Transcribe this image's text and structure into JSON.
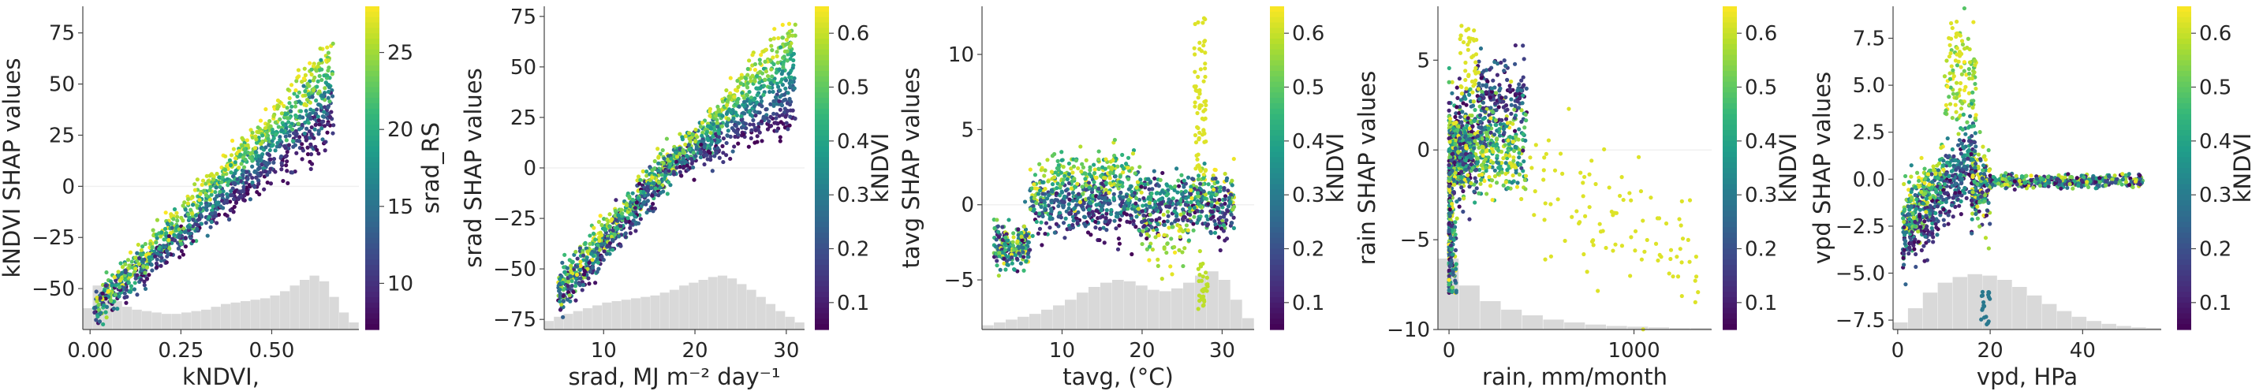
{
  "chart_data": [
    {
      "type": "scatter",
      "xlabel": "kNDVI,",
      "ylabel": "kNDVI SHAP values",
      "xlim": [
        -0.02,
        0.74
      ],
      "ylim": [
        -70,
        88
      ],
      "xticks": [
        0.0,
        0.25,
        0.5
      ],
      "xtick_labels": [
        "0.00",
        "0.25",
        "0.50"
      ],
      "yticks": [
        -50,
        -25,
        0,
        25,
        50,
        75
      ],
      "ytick_labels": [
        "−50",
        "−25",
        "0",
        "25",
        "50",
        "75"
      ],
      "colorbar": {
        "label": "srad_RS",
        "range": [
          7,
          28
        ],
        "ticks": [
          10,
          15,
          20,
          25
        ],
        "tick_labels": [
          "10",
          "15",
          "20",
          "25"
        ]
      },
      "zero_line": true,
      "histogram_heights": [
        0.3,
        0.62,
        0.55,
        0.4,
        0.32,
        0.28,
        0.26,
        0.24,
        0.22,
        0.22,
        0.24,
        0.26,
        0.28,
        0.32,
        0.36,
        0.38,
        0.4,
        0.42,
        0.44,
        0.48,
        0.54,
        0.62,
        0.7,
        0.76,
        0.68,
        0.46,
        0.24,
        0.1
      ],
      "points": [
        [
          0.03,
          -60
        ],
        [
          0.06,
          -52
        ],
        [
          0.1,
          -38
        ],
        [
          0.15,
          -22
        ],
        [
          0.2,
          -12
        ],
        [
          0.25,
          -2
        ],
        [
          0.3,
          8
        ],
        [
          0.35,
          18
        ],
        [
          0.4,
          26
        ],
        [
          0.45,
          36
        ],
        [
          0.5,
          44
        ],
        [
          0.55,
          52
        ],
        [
          0.6,
          60
        ],
        [
          0.63,
          70
        ],
        [
          0.65,
          80
        ]
      ]
    },
    {
      "type": "scatter",
      "xlabel": "srad, MJ m⁻² day⁻¹",
      "ylabel": "srad SHAP values",
      "xlim": [
        3.5,
        32
      ],
      "ylim": [
        -80,
        80
      ],
      "xticks": [
        10,
        20,
        30
      ],
      "xtick_labels": [
        "10",
        "20",
        "30"
      ],
      "yticks": [
        -75,
        -50,
        -25,
        0,
        25,
        50,
        75
      ],
      "ytick_labels": [
        "−75",
        "−50",
        "−25",
        "0",
        "25",
        "50",
        "75"
      ],
      "colorbar": {
        "label": "kNDVI",
        "range": [
          0.05,
          0.65
        ],
        "ticks": [
          0.1,
          0.2,
          0.3,
          0.4,
          0.5,
          0.6
        ],
        "tick_labels": [
          "0.1",
          "0.2",
          "0.3",
          "0.4",
          "0.5",
          "0.6"
        ]
      },
      "zero_line": true,
      "histogram_heights": [
        0.12,
        0.18,
        0.22,
        0.26,
        0.3,
        0.34,
        0.38,
        0.4,
        0.42,
        0.44,
        0.46,
        0.48,
        0.52,
        0.56,
        0.62,
        0.66,
        0.7,
        0.74,
        0.76,
        0.72,
        0.64,
        0.56,
        0.46,
        0.36,
        0.26,
        0.18,
        0.1
      ],
      "points": [
        [
          5,
          -70
        ],
        [
          8,
          -55
        ],
        [
          11,
          -35
        ],
        [
          14,
          -15
        ],
        [
          17,
          0
        ],
        [
          20,
          12
        ],
        [
          23,
          22
        ],
        [
          26,
          28
        ],
        [
          29,
          20
        ],
        [
          25,
          60
        ],
        [
          27,
          72
        ]
      ]
    },
    {
      "type": "scatter",
      "xlabel": "tavg, (°C)",
      "ylabel": "tavg SHAP values",
      "xlim": [
        0,
        34
      ],
      "ylim": [
        -8.3,
        13.2
      ],
      "xticks": [
        10,
        20,
        30
      ],
      "xtick_labels": [
        "10",
        "20",
        "30"
      ],
      "yticks": [
        -5,
        0,
        5,
        10
      ],
      "ytick_labels": [
        "−5",
        "0",
        "5",
        "10"
      ],
      "colorbar": {
        "label": "kNDVI",
        "range": [
          0.05,
          0.65
        ],
        "ticks": [
          0.1,
          0.2,
          0.3,
          0.4,
          0.5,
          0.6
        ],
        "tick_labels": [
          "0.1",
          "0.2",
          "0.3",
          "0.4",
          "0.5",
          "0.6"
        ]
      },
      "zero_line": true,
      "histogram_heights": [
        0.06,
        0.1,
        0.14,
        0.18,
        0.22,
        0.28,
        0.34,
        0.42,
        0.52,
        0.6,
        0.66,
        0.7,
        0.68,
        0.62,
        0.56,
        0.54,
        0.58,
        0.66,
        0.76,
        0.82,
        0.7,
        0.42,
        0.16
      ],
      "points": [
        [
          2,
          -2.5
        ],
        [
          5,
          -3
        ],
        [
          8,
          -1
        ],
        [
          12,
          2
        ],
        [
          15,
          1.5
        ],
        [
          18,
          1
        ],
        [
          22,
          -2
        ],
        [
          25,
          0.5
        ],
        [
          27,
          10
        ],
        [
          28,
          -6
        ],
        [
          30,
          0
        ]
      ]
    },
    {
      "type": "scatter",
      "xlabel": "rain, mm/month",
      "ylabel": "rain SHAP values",
      "xlim": [
        -60,
        1420
      ],
      "ylim": [
        -10,
        8
      ],
      "xticks": [
        0,
        1000
      ],
      "xtick_labels": [
        "0",
        "1000"
      ],
      "yticks": [
        -10,
        -5,
        0,
        5
      ],
      "ytick_labels": [
        "−10",
        "−5",
        "0",
        "5"
      ],
      "colorbar": {
        "label": "kNDVI",
        "range": [
          0.05,
          0.65
        ],
        "ticks": [
          0.1,
          0.2,
          0.3,
          0.4,
          0.5,
          0.6
        ],
        "tick_labels": [
          "0.1",
          "0.2",
          "0.3",
          "0.4",
          "0.5",
          "0.6"
        ]
      },
      "zero_line": true,
      "histogram_heights": [
        1.0,
        0.62,
        0.4,
        0.28,
        0.2,
        0.14,
        0.1,
        0.07,
        0.05,
        0.04,
        0.03,
        0.02,
        0.02
      ],
      "points": [
        [
          10,
          -2
        ],
        [
          50,
          1
        ],
        [
          100,
          3
        ],
        [
          200,
          4.5
        ],
        [
          300,
          3
        ],
        [
          400,
          0.5
        ],
        [
          600,
          -3
        ],
        [
          900,
          -6
        ],
        [
          1300,
          -6
        ]
      ]
    },
    {
      "type": "scatter",
      "xlabel": "vpd, HPa",
      "ylabel": "vpd SHAP values",
      "xlim": [
        -1,
        57
      ],
      "ylim": [
        -8,
        9.2
      ],
      "xticks": [
        0,
        20,
        40
      ],
      "xtick_labels": [
        "0",
        "20",
        "40"
      ],
      "yticks": [
        -7.5,
        -5.0,
        -2.5,
        0.0,
        2.5,
        5.0,
        7.5
      ],
      "ytick_labels": [
        "−7.5",
        "−5.0",
        "−2.5",
        "0.0",
        "2.5",
        "5.0",
        "7.5"
      ],
      "colorbar": {
        "label": "kNDVI",
        "range": [
          0.05,
          0.65
        ],
        "ticks": [
          0.1,
          0.2,
          0.3,
          0.4,
          0.5,
          0.6
        ],
        "tick_labels": [
          "0.1",
          "0.2",
          "0.3",
          "0.4",
          "0.5",
          "0.6"
        ]
      },
      "zero_line": false,
      "histogram_heights": [
        0.1,
        0.3,
        0.52,
        0.66,
        0.74,
        0.78,
        0.76,
        0.7,
        0.6,
        0.48,
        0.36,
        0.26,
        0.18,
        0.12,
        0.08,
        0.05,
        0.03,
        0.02
      ],
      "points": [
        [
          1,
          -2.5
        ],
        [
          5,
          -1
        ],
        [
          8,
          0.5
        ],
        [
          11,
          2
        ],
        [
          13,
          6
        ],
        [
          16,
          1
        ],
        [
          20,
          -0.3
        ],
        [
          30,
          0
        ],
        [
          45,
          0
        ]
      ]
    }
  ]
}
